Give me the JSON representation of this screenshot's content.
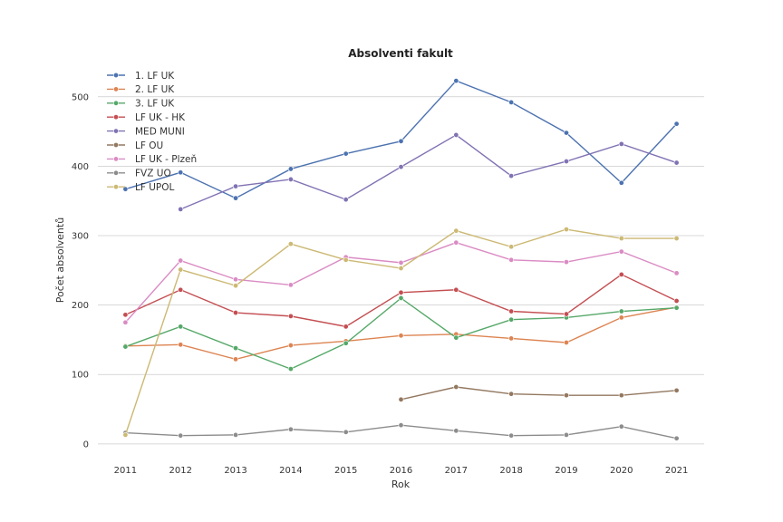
{
  "chart_data": {
    "type": "line",
    "title": "Absolventi fakult",
    "xlabel": "Rok",
    "ylabel": "Počet absolventů",
    "x": [
      2011,
      2012,
      2013,
      2014,
      2015,
      2016,
      2017,
      2018,
      2019,
      2020,
      2021
    ],
    "xlim": [
      2010.5,
      2021.5
    ],
    "ylim": [
      -25,
      548
    ],
    "yticks": [
      0,
      100,
      200,
      300,
      400,
      500
    ],
    "grid": "y",
    "legend": "top-left",
    "series": [
      {
        "name": "1. LF UK",
        "color": "#4c72b0",
        "values": [
          367,
          391,
          354,
          396,
          418,
          436,
          523,
          492,
          448,
          376,
          461
        ]
      },
      {
        "name": "2. LF UK",
        "color": "#dd8452",
        "values": [
          141,
          143,
          122,
          142,
          148,
          156,
          158,
          152,
          146,
          182,
          197
        ]
      },
      {
        "name": "3. LF UK",
        "color": "#55a868",
        "values": [
          140,
          169,
          138,
          108,
          145,
          210,
          153,
          179,
          182,
          191,
          196
        ]
      },
      {
        "name": "LF UK - HK",
        "color": "#c44e52",
        "values": [
          186,
          222,
          189,
          184,
          169,
          218,
          222,
          191,
          187,
          244,
          206
        ]
      },
      {
        "name": "MED MUNI",
        "color": "#8172b3",
        "values": [
          null,
          338,
          371,
          381,
          352,
          399,
          445,
          386,
          407,
          432,
          405
        ]
      },
      {
        "name": "LF OU",
        "color": "#937860",
        "values": [
          null,
          null,
          null,
          null,
          null,
          64,
          82,
          72,
          70,
          70,
          77
        ]
      },
      {
        "name": "LF UK - Plzeň",
        "color": "#da8bc3",
        "values": [
          175,
          264,
          237,
          229,
          269,
          261,
          290,
          265,
          262,
          277,
          246
        ]
      },
      {
        "name": "FVZ UO",
        "color": "#8c8c8c",
        "values": [
          16,
          12,
          13,
          21,
          17,
          27,
          19,
          12,
          13,
          25,
          8
        ]
      },
      {
        "name": "LF UPOL",
        "color": "#ccb974",
        "values": [
          13,
          251,
          228,
          288,
          265,
          253,
          307,
          284,
          309,
          296,
          296
        ]
      }
    ]
  }
}
